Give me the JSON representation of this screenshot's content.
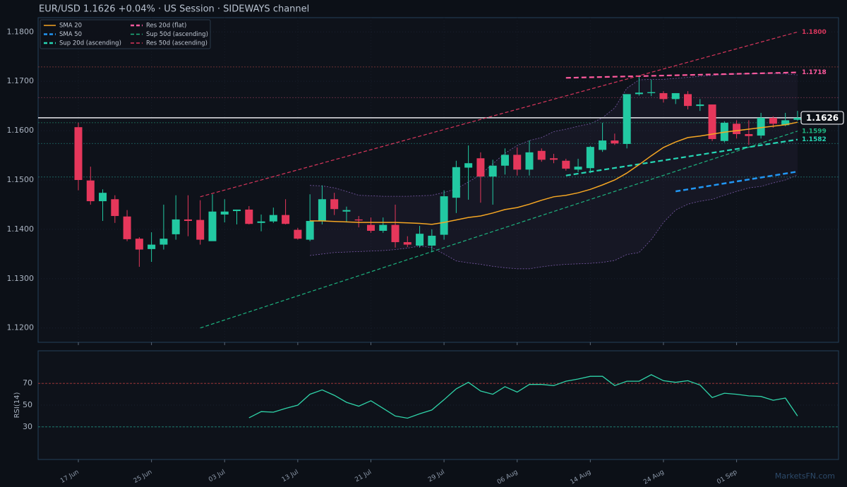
{
  "title": "EUR/USD   1.1626   +0.04%  ·  US Session  ·  SIDEWAYS channel",
  "watermark": "MarketsFN.com",
  "chart_data": [
    {
      "type": "candlestick",
      "categories": [
        "17 Jun",
        null,
        null,
        null,
        null,
        null,
        "25 Jun",
        null,
        null,
        null,
        null,
        null,
        "03 Jul",
        null,
        null,
        null,
        null,
        null,
        "13 Jul",
        null,
        null,
        null,
        null,
        null,
        "21 Jul",
        null,
        null,
        null,
        null,
        null,
        "29 Jul",
        null,
        null,
        null,
        null,
        null,
        "06 Aug",
        null,
        null,
        null,
        null,
        null,
        "14 Aug",
        null,
        null,
        null,
        null,
        null,
        "24 Aug",
        null,
        null,
        null,
        null,
        null,
        "01 Sep",
        null,
        null,
        null,
        null,
        null
      ],
      "open": [
        1.1607,
        1.1499,
        1.1457,
        1.1461,
        1.1426,
        1.1381,
        1.136,
        1.1369,
        1.139,
        1.142,
        1.1419,
        1.1376,
        1.143,
        1.1437,
        1.144,
        1.1413,
        1.1416,
        1.1429,
        1.1399,
        1.1379,
        1.1417,
        1.1461,
        1.1436,
        1.142,
        1.1409,
        1.1397,
        1.1409,
        1.1374,
        1.1367,
        1.1367,
        1.1389,
        1.1464,
        1.1525,
        1.1544,
        1.1507,
        1.1529,
        1.1551,
        1.1521,
        1.1559,
        1.1544,
        1.1539,
        1.1521,
        1.1524,
        1.1561,
        1.158,
        1.1573,
        1.1674,
        1.1676,
        1.1676,
        1.1664,
        1.1674,
        1.165,
        1.1653,
        1.1579,
        1.1614,
        1.1593,
        1.159,
        1.1626,
        1.1611,
        1.1622
      ],
      "high": [
        1.1616,
        1.1527,
        1.1481,
        1.1469,
        1.1439,
        1.1384,
        1.1394,
        1.145,
        1.1469,
        1.1469,
        1.1459,
        1.1471,
        1.1461,
        1.144,
        1.1447,
        1.143,
        1.1444,
        1.1461,
        1.1403,
        1.1471,
        1.1489,
        1.1474,
        1.1446,
        1.1427,
        1.1424,
        1.1424,
        1.145,
        1.1386,
        1.1407,
        1.14,
        1.1479,
        1.1539,
        1.157,
        1.1556,
        1.1541,
        1.1564,
        1.1566,
        1.158,
        1.1564,
        1.1553,
        1.1543,
        1.1543,
        1.1569,
        1.1616,
        1.1594,
        1.1671,
        1.1709,
        1.1703,
        1.168,
        1.1676,
        1.168,
        1.1664,
        1.1653,
        1.1619,
        1.1621,
        1.1621,
        1.1636,
        1.1629,
        1.1636,
        1.164
      ],
      "low": [
        1.1479,
        1.145,
        1.1417,
        1.1413,
        1.1376,
        1.1324,
        1.1334,
        1.1359,
        1.1379,
        1.1386,
        1.1369,
        1.1379,
        1.1414,
        1.141,
        1.141,
        1.1396,
        1.1413,
        1.141,
        1.1379,
        1.1376,
        1.141,
        1.1429,
        1.1414,
        1.1404,
        1.1393,
        1.1393,
        1.1363,
        1.1364,
        1.1363,
        1.1354,
        1.1379,
        1.1433,
        1.146,
        1.1454,
        1.145,
        1.1511,
        1.1509,
        1.1509,
        1.1537,
        1.1534,
        1.1519,
        1.1516,
        1.1514,
        1.1557,
        1.1571,
        1.1564,
        1.1671,
        1.167,
        1.1657,
        1.1654,
        1.1643,
        1.164,
        1.1579,
        1.1576,
        1.1584,
        1.1571,
        1.1584,
        1.1606,
        1.1609,
        1.162
      ],
      "close": [
        1.15,
        1.1457,
        1.1474,
        1.1427,
        1.138,
        1.1359,
        1.1369,
        1.1381,
        1.142,
        1.1417,
        1.1379,
        1.1436,
        1.1436,
        1.144,
        1.1411,
        1.1416,
        1.1429,
        1.1411,
        1.1381,
        1.1417,
        1.1461,
        1.1441,
        1.1439,
        1.1418,
        1.1397,
        1.1409,
        1.1374,
        1.1369,
        1.1391,
        1.1387,
        1.1467,
        1.1526,
        1.1534,
        1.1507,
        1.1529,
        1.1551,
        1.1521,
        1.1556,
        1.1541,
        1.1541,
        1.1523,
        1.1527,
        1.1567,
        1.158,
        1.1574,
        1.1674,
        1.1677,
        1.1678,
        1.1664,
        1.1676,
        1.165,
        1.1653,
        1.1583,
        1.1616,
        1.1593,
        1.1589,
        1.1626,
        1.1614,
        1.1621,
        1.1626
      ],
      "up_color": "#22c9a2",
      "down_color": "#e5375b",
      "ylim": [
        1.1171,
        1.1829
      ],
      "yticks": [
        {
          "value": 1.12,
          "label": "1.1200"
        },
        {
          "value": 1.13,
          "label": "1.1300"
        },
        {
          "value": 1.14,
          "label": "1.1400"
        },
        {
          "value": 1.15,
          "label": "1.1500"
        },
        {
          "value": 1.16,
          "label": "1.1600"
        },
        {
          "value": 1.17,
          "label": "1.1700"
        },
        {
          "value": 1.18,
          "label": "1.1800"
        }
      ],
      "grid": true,
      "legend": "upper left",
      "bands": {
        "color": "#7a5aa8",
        "upper": [
          null,
          null,
          null,
          null,
          null,
          null,
          null,
          null,
          null,
          null,
          null,
          null,
          null,
          null,
          null,
          null,
          null,
          null,
          null,
          1.1489,
          1.1488,
          1.1484,
          1.1477,
          1.1469,
          1.1468,
          1.1467,
          1.1467,
          1.1467,
          1.1468,
          1.1469,
          1.1475,
          1.1482,
          1.1496,
          1.1511,
          1.1533,
          1.1554,
          1.157,
          1.158,
          1.1586,
          1.1598,
          1.1603,
          1.1609,
          1.1614,
          1.1626,
          1.1646,
          1.1686,
          1.1703,
          1.1704,
          1.1704,
          1.1706,
          1.1708,
          1.171,
          1.1712,
          1.1714,
          1.1715,
          1.1715,
          1.1716,
          1.1716,
          1.1715,
          1.1713
        ],
        "lower": [
          null,
          null,
          null,
          null,
          null,
          null,
          null,
          null,
          null,
          null,
          null,
          null,
          null,
          null,
          null,
          null,
          null,
          null,
          null,
          1.1347,
          1.135,
          1.1353,
          1.1354,
          1.1355,
          1.1356,
          1.1357,
          1.1359,
          1.1362,
          1.1366,
          1.1363,
          1.135,
          1.1336,
          1.1332,
          1.1329,
          1.1325,
          1.1322,
          1.132,
          1.132,
          1.1324,
          1.1327,
          1.1329,
          1.133,
          1.1331,
          1.1333,
          1.1337,
          1.1349,
          1.1353,
          1.1379,
          1.1414,
          1.1439,
          1.1451,
          1.1457,
          1.1461,
          1.1469,
          1.1477,
          1.1484,
          1.1487,
          1.1494,
          1.15,
          1.151
        ]
      },
      "levels": {
        "values": [
          1.1729,
          1.1667,
          1.1616,
          1.1574,
          1.1506
        ],
        "colors": [
          "#8a3a3a",
          "#7a3550",
          "#1e7a60",
          "#1e6e6a",
          "#1e6e6a"
        ]
      },
      "last_price": {
        "value": 1.1626,
        "label": "1.1626"
      },
      "series": [
        {
          "name": "SMA 20",
          "color": "#f5a623",
          "dash": "solid",
          "weight": "thin",
          "values": [
            null,
            null,
            null,
            null,
            null,
            null,
            null,
            null,
            null,
            null,
            null,
            null,
            null,
            null,
            null,
            null,
            null,
            null,
            null,
            1.1417,
            1.1417,
            1.1416,
            1.1415,
            1.1414,
            1.1414,
            1.1414,
            1.1414,
            1.1413,
            1.1412,
            1.141,
            1.1414,
            1.1419,
            1.1424,
            1.1427,
            1.1433,
            1.144,
            1.1444,
            1.1451,
            1.1459,
            1.1466,
            1.1469,
            1.1474,
            1.1481,
            1.149,
            1.15,
            1.1514,
            1.1531,
            1.1549,
            1.1566,
            1.1577,
            1.1586,
            1.1589,
            1.1593,
            1.1597,
            1.16,
            1.1603,
            1.1606,
            1.1609,
            1.1612,
            1.1617
          ]
        },
        {
          "name": "SMA 50",
          "color": "#2196f3",
          "dash": "dashed",
          "weight": "thick",
          "values": [
            null,
            null,
            null,
            null,
            null,
            null,
            null,
            null,
            null,
            null,
            null,
            null,
            null,
            null,
            null,
            null,
            null,
            null,
            null,
            null,
            null,
            null,
            null,
            null,
            null,
            null,
            null,
            null,
            null,
            null,
            null,
            null,
            null,
            null,
            null,
            null,
            null,
            null,
            null,
            null,
            null,
            null,
            null,
            null,
            null,
            null,
            null,
            null,
            null,
            1.1477,
            1.1481,
            1.1485,
            1.1489,
            1.1493,
            1.1497,
            1.1501,
            1.1505,
            1.1509,
            1.1513,
            1.1517
          ]
        }
      ],
      "trendlines": [
        {
          "name": "Sup 20d (ascending)",
          "color": "#26d7b5",
          "dash": "dashed",
          "weight": "thick",
          "x": [
            40,
            59
          ],
          "values": [
            1.1509,
            1.1582
          ],
          "value_labels": [
            null,
            "1.1582"
          ]
        },
        {
          "name": "Res 20d (flat)",
          "color": "#ff5a9e",
          "dash": "dashed",
          "weight": "thick",
          "x": [
            40,
            59
          ],
          "values": [
            1.1707,
            1.1718
          ],
          "value_labels": [
            null,
            "1.1718"
          ]
        },
        {
          "name": "Sup 50d (ascending)",
          "color": "#1db37f",
          "dash": "dashed",
          "weight": "thin",
          "x": [
            10,
            59
          ],
          "values": [
            1.12,
            1.1599
          ],
          "value_labels": [
            null,
            "1.1599"
          ]
        },
        {
          "name": "Res 50d (ascending)",
          "color": "#d9365c",
          "dash": "dashed",
          "weight": "thin",
          "x": [
            10,
            59
          ],
          "values": [
            1.1466,
            1.18
          ],
          "value_labels": [
            null,
            "1.1800"
          ]
        }
      ]
    },
    {
      "type": "line",
      "ylabel": "RSI(14)",
      "ylim": [
        0,
        100
      ],
      "yticks": [
        30,
        50,
        70
      ],
      "color": "#2fd3a8",
      "levels": {
        "values": [
          70,
          30
        ],
        "colors": [
          "#b03a3a",
          "#1e8a7a"
        ]
      },
      "values": [
        null,
        null,
        null,
        null,
        null,
        null,
        null,
        null,
        null,
        null,
        null,
        null,
        null,
        null,
        38.4,
        44,
        43.5,
        47,
        50,
        60,
        64,
        59,
        52.6,
        49,
        54,
        47,
        40,
        38,
        42,
        45.5,
        55,
        65,
        71,
        63,
        60,
        67,
        62,
        69,
        69,
        68,
        72,
        74,
        76.5,
        76.5,
        68,
        72,
        72,
        78,
        72.5,
        71,
        72.5,
        68.5,
        57,
        61,
        60,
        58.5,
        58,
        54.5,
        56.5,
        40
      ]
    }
  ]
}
